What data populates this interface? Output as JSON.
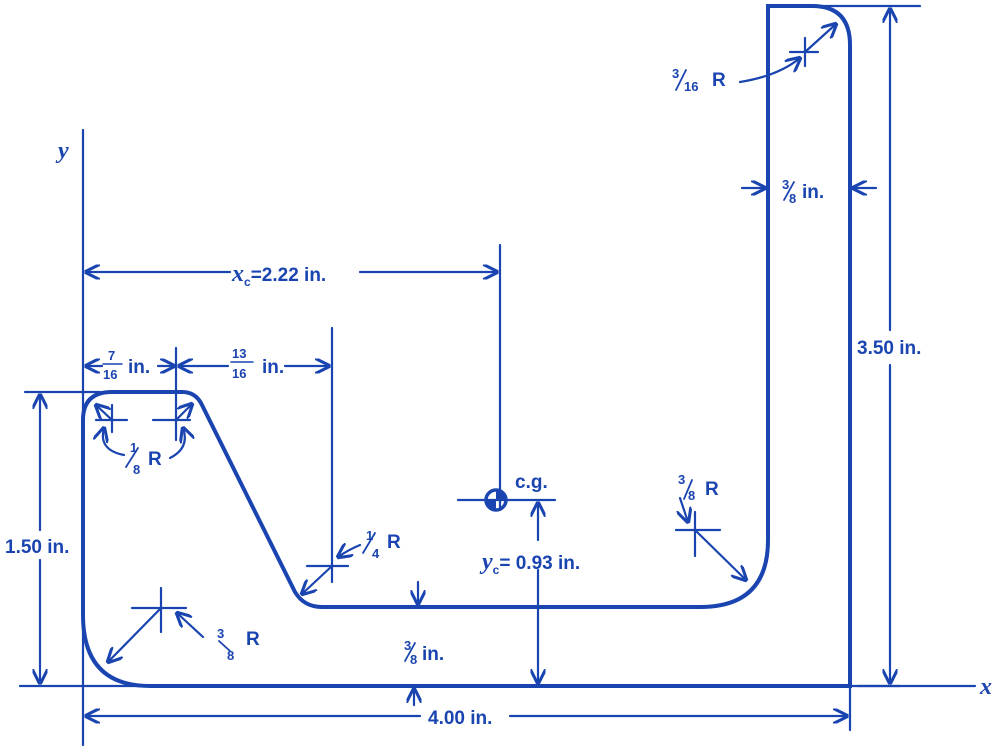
{
  "axes": {
    "x_label": "x",
    "y_label": "y"
  },
  "colors": {
    "ink": "#1a44b0",
    "background": "#ffffff"
  },
  "dimensions": {
    "xc": {
      "symbol": "x",
      "sub": "c",
      "text": "=2.22 in."
    },
    "yc": {
      "symbol": "y",
      "sub": "c",
      "text": "= 0.93 in."
    },
    "cg": "c.g.",
    "width_total": "4.00 in.",
    "height_right": "3.50 in.",
    "height_left": "1.50 in.",
    "left_flange": {
      "num": "7",
      "den": "16",
      "unit": "in."
    },
    "diag_offset": {
      "num": "13",
      "den": "16",
      "unit": "in."
    },
    "top_radius": {
      "num": "1",
      "den": "8",
      "unit": "R"
    },
    "inner_radius_left": {
      "num": "1",
      "den": "4",
      "unit": "R"
    },
    "outer_radius_left": {
      "num": "3",
      "den": "8",
      "unit": "R"
    },
    "inner_radius_right": {
      "num": "3",
      "den": "8",
      "unit": "R"
    },
    "top_right_radius": {
      "num": "3",
      "den": "16",
      "unit": "R"
    },
    "web_thickness": {
      "num": "3",
      "den": "8",
      "unit": "in."
    },
    "upright_thickness": {
      "num": "3",
      "den": "8",
      "unit": "in."
    }
  }
}
